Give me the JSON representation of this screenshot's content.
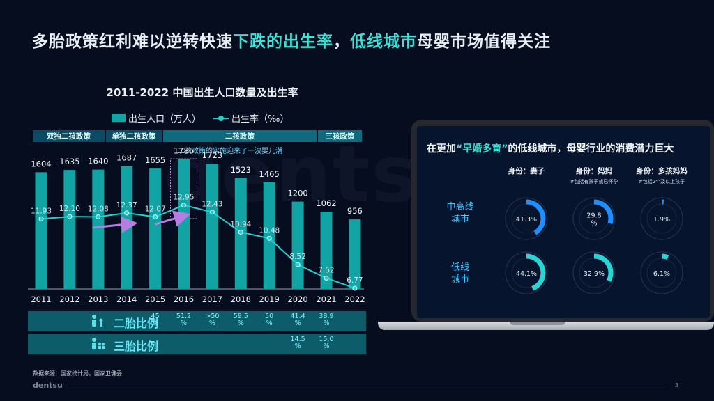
{
  "headline": {
    "part1": "多胎政策红利难以逆转快速",
    "part2": "下跌的出生率",
    "part3": "，",
    "part4": "低线城市",
    "part5": "母婴市场值得关注"
  },
  "watermark": "dentsu",
  "chart_data": {
    "type": "bar",
    "title": "2011-2022 中国出生人口数量及出生率",
    "categories": [
      "2011",
      "2012",
      "2013",
      "2014",
      "2015",
      "2016",
      "2017",
      "2018",
      "2019",
      "2020",
      "2021",
      "2022"
    ],
    "series": [
      {
        "name": "出生人口（万人）",
        "type": "bar",
        "values": [
          1604,
          1635,
          1640,
          1687,
          1655,
          1786,
          1723,
          1523,
          1465,
          1200,
          1062,
          956
        ],
        "labels": [
          "1604",
          "1635",
          "1640",
          "1687",
          "1655",
          "1786",
          "1723",
          "1523",
          "1465",
          "1200",
          "1062",
          "956"
        ]
      },
      {
        "name": "出生率（‰）",
        "type": "line",
        "values": [
          11.93,
          12.1,
          12.08,
          12.37,
          12.07,
          12.95,
          12.43,
          10.94,
          10.48,
          8.52,
          7.52,
          6.77
        ],
        "labels": [
          "11.93",
          "12.10",
          "12.08",
          "12.37",
          "12.07",
          "12.95",
          "12.43",
          "10.94",
          "10.48",
          "8.52",
          "7.52",
          "6.77"
        ]
      }
    ],
    "legend_position": "top",
    "grid": false
  },
  "policies": [
    {
      "label": "双独二孩政策"
    },
    {
      "label": "单独二孩政策"
    },
    {
      "label": "二孩政策"
    },
    {
      "label": "三孩政策"
    }
  ],
  "policy_note": "二孩政策的实施迎来了一波婴儿潮",
  "ratios": {
    "second_child_label": "二胎比例",
    "third_child_label": "三胎比例",
    "second_child": [
      {
        "year": "2015",
        "line1": "45",
        "line2": "%"
      },
      {
        "year": "2016",
        "line1": "51.2",
        "line2": "%"
      },
      {
        "year": "2017",
        "line1": ">50",
        "line2": "%"
      },
      {
        "year": "2018",
        "line1": "59.5",
        "line2": "%"
      },
      {
        "year": "2019",
        "line1": "50",
        "line2": "%"
      },
      {
        "year": "2020",
        "line1": "41.4",
        "line2": "%"
      },
      {
        "year": "2021",
        "line1": "38.9",
        "line2": "%"
      }
    ],
    "third_child": [
      {
        "year": "2020",
        "line1": "14.5",
        "line2": "%"
      },
      {
        "year": "2021",
        "line1": "15.0",
        "line2": "%"
      }
    ]
  },
  "source": "数据来源：国家统计局，国家卫健委",
  "footer": {
    "logo": "dentsu",
    "page": "3"
  },
  "laptop": {
    "title_pre": "在更加",
    "title_quote": "“早婚多育”",
    "title_post": "的低线城市，母婴行业的消费潜力巨大",
    "columns": [
      {
        "head": "身份：妻子",
        "sub": ""
      },
      {
        "head": "身份：妈妈",
        "sub": "#包括有孩子或已怀孕"
      },
      {
        "head": "身份：多孩妈妈",
        "sub": "#包括2个及以上孩子"
      }
    ],
    "rows": [
      {
        "label_line1": "中高线",
        "label_line2": "城市",
        "values": [
          {
            "pct": 41.3,
            "text": "41.3%"
          },
          {
            "pct": 29.8,
            "text": "29.8\n%"
          },
          {
            "pct": 1.9,
            "text": "1.9%"
          }
        ],
        "color": "#1e8fff"
      },
      {
        "label_line1": "低线",
        "label_line2": "城市",
        "values": [
          {
            "pct": 44.1,
            "text": "44.1%"
          },
          {
            "pct": 32.9,
            "text": "32.9%"
          },
          {
            "pct": 6.1,
            "text": "6.1%"
          }
        ],
        "color": "#2ad4d4"
      }
    ]
  }
}
